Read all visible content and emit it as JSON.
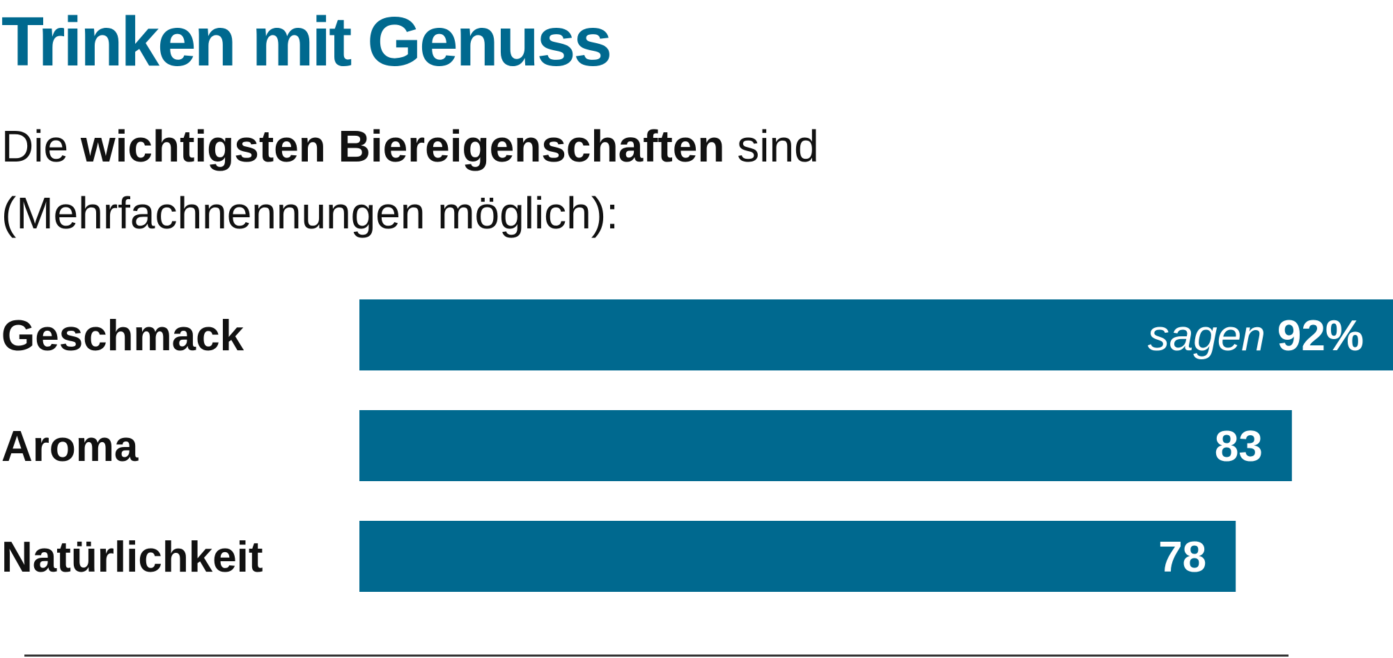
{
  "colors": {
    "accent": "#00698f",
    "text": "#111111",
    "bar_label": "#ffffff",
    "rule": "#333333"
  },
  "chart_data": {
    "type": "bar",
    "orientation": "horizontal",
    "title": "Trinken mit Genuss",
    "subtitle": {
      "prefix": "Die ",
      "emphasis": "wichtigsten Biereigenschaften",
      "suffix": " sind",
      "line2": "(Mehrfachnennungen möglich):"
    },
    "categories": [
      "Geschmack",
      "Aroma",
      "Natürlichkeit"
    ],
    "values": [
      92,
      83,
      78
    ],
    "value_labels": [
      {
        "prefix": "sagen ",
        "text": "92%"
      },
      {
        "prefix": "",
        "text": "83"
      },
      {
        "prefix": "",
        "text": "78"
      }
    ],
    "unit": "%",
    "xlim": [
      0,
      92
    ],
    "grid": false,
    "legend": "none"
  }
}
